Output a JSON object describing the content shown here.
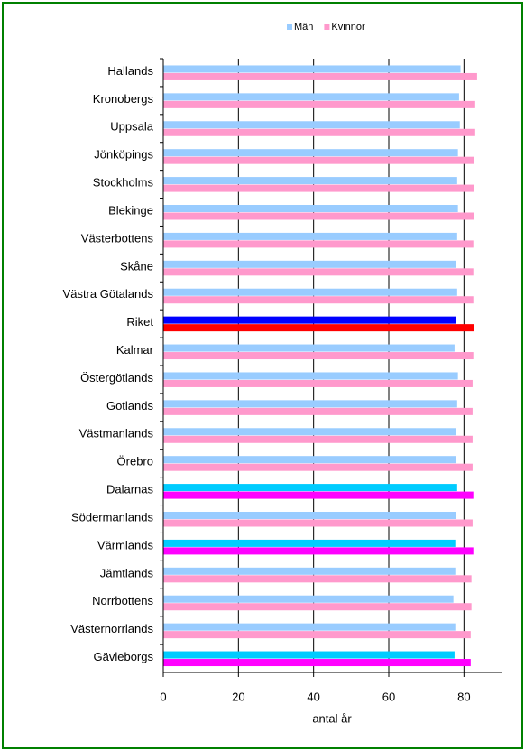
{
  "chart_data": {
    "type": "barh",
    "categories": [
      "Hallands",
      "Kronobergs",
      "Uppsala",
      "Jönköpings",
      "Stockholms",
      "Blekinge",
      "Västerbottens",
      "Skåne",
      "Västra Götalands",
      "Riket",
      "Kalmar",
      "Östergötlands",
      "Gotlands",
      "Västmanlands",
      "Örebro",
      "Dalarnas",
      "Södermanlands",
      "Värmlands",
      "Jämtlands",
      "Norrbottens",
      "Västernorrlands",
      "Gävleborgs"
    ],
    "series": [
      {
        "name": "Män",
        "color": "#99ccff",
        "values": [
          79.1,
          78.7,
          78.9,
          78.4,
          78.2,
          78.4,
          78.2,
          77.9,
          78.2,
          77.9,
          77.5,
          78.4,
          78.2,
          77.9,
          77.9,
          78.2,
          77.9,
          77.7,
          77.7,
          77.2,
          77.7,
          77.5
        ],
        "colors": [
          "#99ccff",
          "#99ccff",
          "#99ccff",
          "#99ccff",
          "#99ccff",
          "#99ccff",
          "#99ccff",
          "#99ccff",
          "#99ccff",
          "#0000ff",
          "#99ccff",
          "#99ccff",
          "#99ccff",
          "#99ccff",
          "#99ccff",
          "#00ccff",
          "#99ccff",
          "#00ccff",
          "#99ccff",
          "#99ccff",
          "#99ccff",
          "#00ccff"
        ]
      },
      {
        "name": "Kvinnor",
        "color": "#ff99cc",
        "values": [
          83.5,
          83.0,
          83.0,
          82.7,
          82.7,
          82.7,
          82.5,
          82.5,
          82.5,
          82.7,
          82.5,
          82.3,
          82.3,
          82.3,
          82.3,
          82.5,
          82.3,
          82.5,
          82.0,
          82.0,
          81.8,
          81.8
        ],
        "colors": [
          "#ff99cc",
          "#ff99cc",
          "#ff99cc",
          "#ff99cc",
          "#ff99cc",
          "#ff99cc",
          "#ff99cc",
          "#ff99cc",
          "#ff99cc",
          "#ff0000",
          "#ff99cc",
          "#ff99cc",
          "#ff99cc",
          "#ff99cc",
          "#ff99cc",
          "#ff00ff",
          "#ff99cc",
          "#ff00ff",
          "#ff99cc",
          "#ff99cc",
          "#ff99cc",
          "#ff00ff"
        ]
      }
    ],
    "x_label": "antal år",
    "xlim": [
      0,
      90
    ],
    "xticks": [
      0,
      20,
      40,
      60,
      80
    ],
    "grid": true,
    "legend": "top"
  }
}
